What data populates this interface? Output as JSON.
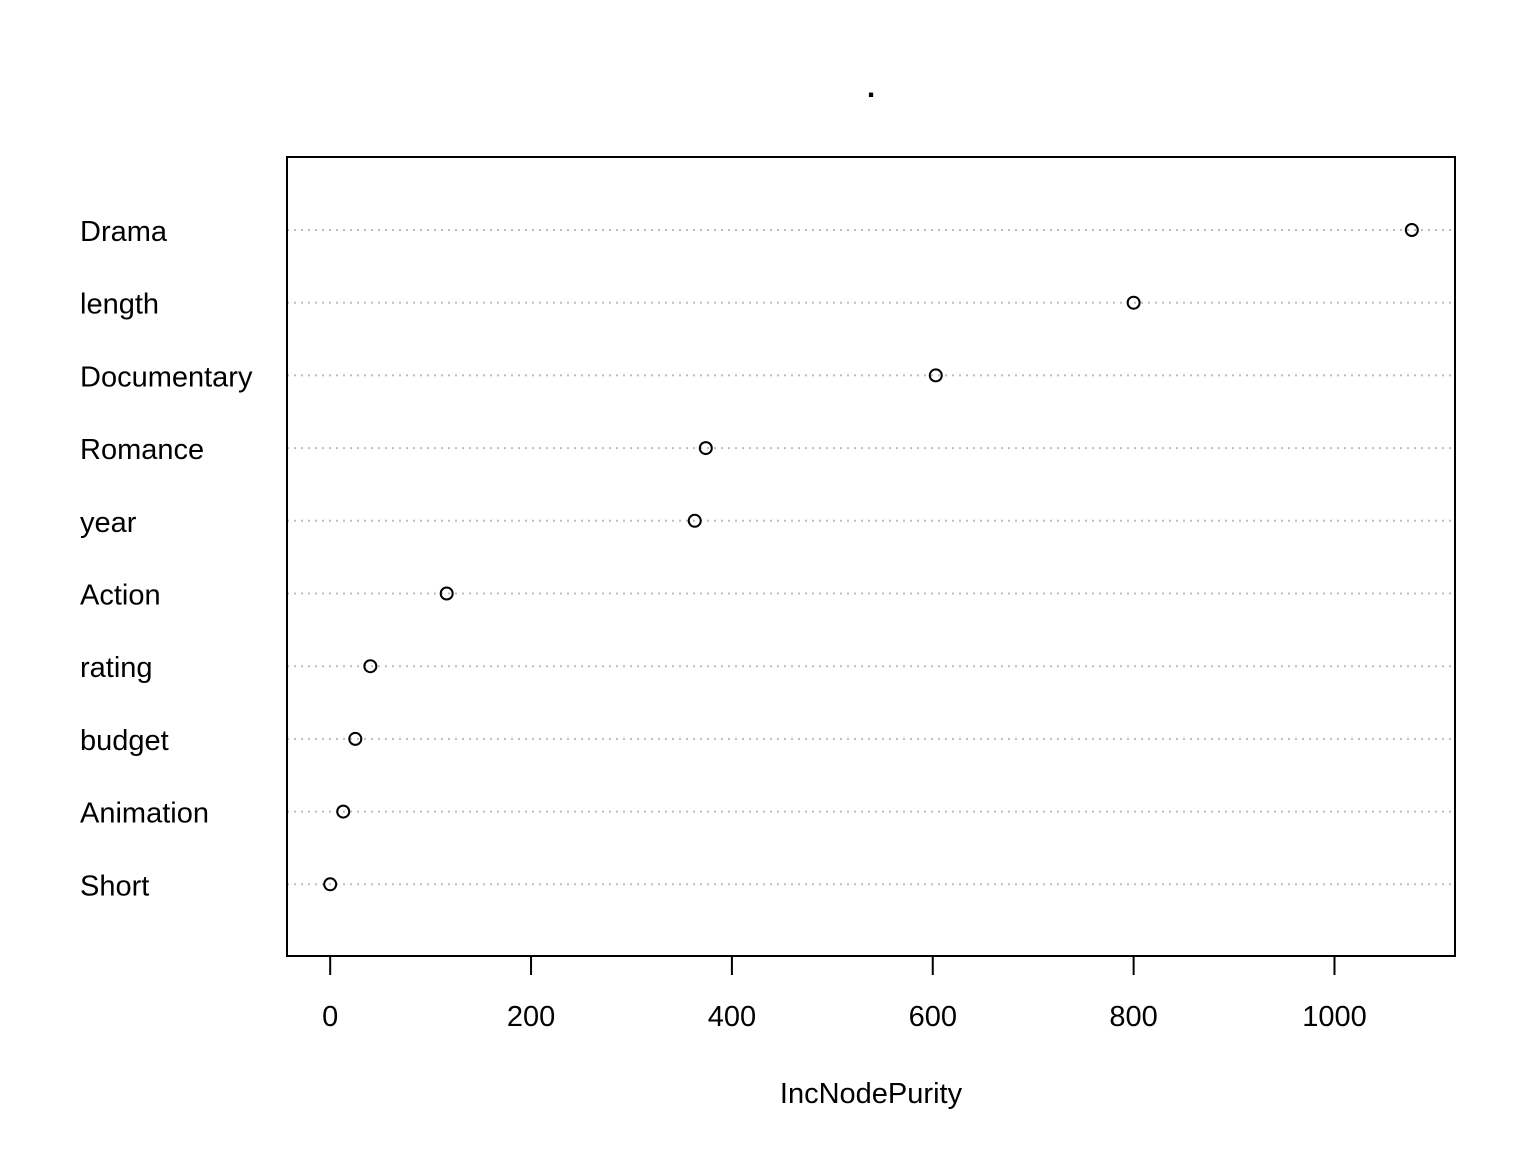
{
  "chart_data": {
    "type": "scatter",
    "title": ".",
    "xlabel": "IncNodePurity",
    "ylabel": "",
    "categories": [
      "Drama",
      "length",
      "Documentary",
      "Romance",
      "year",
      "Action",
      "rating",
      "budget",
      "Animation",
      "Short"
    ],
    "values": [
      1077,
      800,
      603,
      374,
      363,
      116,
      40,
      25,
      13,
      0
    ],
    "xlim": [
      -43,
      1120
    ],
    "xticks": [
      0,
      200,
      400,
      600,
      800,
      1000
    ],
    "grid": "horizontal dotted",
    "legend": "none"
  }
}
